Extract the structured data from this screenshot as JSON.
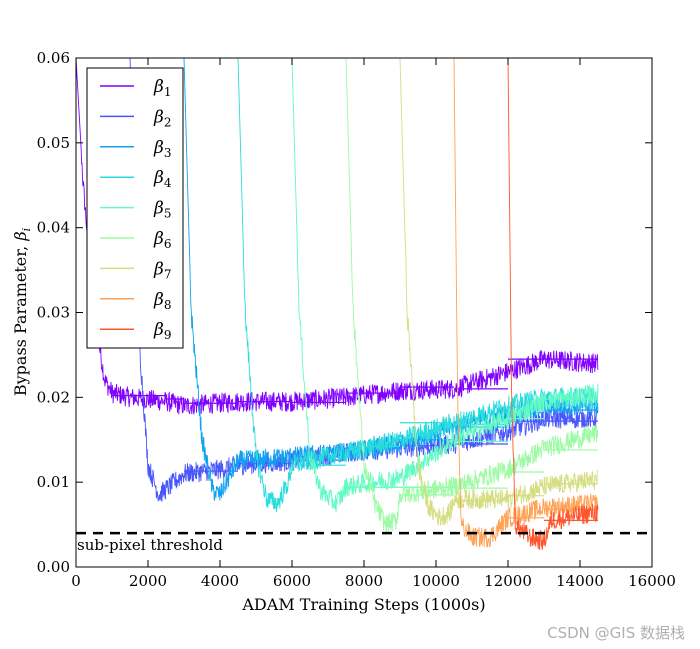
{
  "chart_data": {
    "type": "line",
    "title": "",
    "xlabel": "ADAM Training Steps (1000s)",
    "ylabel": "Bypass Parameter, βi",
    "xlim": [
      0,
      16000
    ],
    "ylim": [
      0,
      0.06
    ],
    "x_ticks": [
      0,
      2000,
      4000,
      6000,
      8000,
      10000,
      12000,
      14000,
      16000
    ],
    "x_tick_labels": [
      "0",
      "2000",
      "4000",
      "6000",
      "8000",
      "10000",
      "12000",
      "14000",
      "16000"
    ],
    "y_ticks": [
      0,
      0.01,
      0.02,
      0.03,
      0.04,
      0.05,
      0.06
    ],
    "y_tick_labels": [
      "0.00",
      "0.01",
      "0.02",
      "0.03",
      "0.04",
      "0.05",
      "0.06"
    ],
    "grid": false,
    "legend_position": "top-left",
    "threshold": {
      "value": 0.004,
      "label": "sub-pixel threshold",
      "style": "dashed",
      "color": "#000000"
    },
    "series": [
      {
        "name": "β1",
        "color": "#8000ff",
        "start": 0,
        "trained": [
          [
            0,
            0.06
          ],
          [
            200,
            0.045
          ],
          [
            500,
            0.03
          ],
          [
            800,
            0.022
          ],
          [
            1000,
            0.0205
          ],
          [
            1500,
            0.02
          ],
          [
            2500,
            0.0195
          ],
          [
            3000,
            0.019
          ],
          [
            4500,
            0.0195
          ],
          [
            6000,
            0.0195
          ],
          [
            7500,
            0.02
          ],
          [
            9000,
            0.0208
          ],
          [
            10500,
            0.021
          ],
          [
            12000,
            0.023
          ],
          [
            13000,
            0.0245
          ],
          [
            14500,
            0.024
          ]
        ],
        "sparse": [
          [
            1000,
            0.0202
          ],
          [
            2500,
            0.0198
          ],
          [
            3000,
            0.0193
          ],
          [
            4500,
            0.0195
          ],
          [
            6000,
            0.0194
          ],
          [
            7500,
            0.0205
          ],
          [
            9000,
            0.0212
          ],
          [
            10500,
            0.021
          ],
          [
            12000,
            0.0245
          ],
          [
            13000,
            0.0245
          ]
        ]
      },
      {
        "name": "β2",
        "color": "#4856fb",
        "start": 1500,
        "trained": [
          [
            1500,
            0.06
          ],
          [
            1700,
            0.03
          ],
          [
            2000,
            0.012
          ],
          [
            2300,
            0.0085
          ],
          [
            2600,
            0.0095
          ],
          [
            3000,
            0.011
          ],
          [
            4000,
            0.0115
          ],
          [
            4500,
            0.012
          ],
          [
            6000,
            0.0125
          ],
          [
            7500,
            0.0135
          ],
          [
            9000,
            0.014
          ],
          [
            10500,
            0.0145
          ],
          [
            12000,
            0.016
          ],
          [
            13000,
            0.0175
          ],
          [
            14500,
            0.0175
          ]
        ],
        "sparse": [
          [
            3000,
            0.0113
          ],
          [
            4500,
            0.0122
          ],
          [
            6000,
            0.0126
          ],
          [
            7500,
            0.014
          ],
          [
            9000,
            0.0143
          ],
          [
            10500,
            0.0145
          ],
          [
            12000,
            0.0172
          ],
          [
            13000,
            0.0172
          ]
        ]
      },
      {
        "name": "β3",
        "color": "#10a2f0",
        "start": 3000,
        "trained": [
          [
            3000,
            0.06
          ],
          [
            3200,
            0.03
          ],
          [
            3500,
            0.015
          ],
          [
            3800,
            0.009
          ],
          [
            4000,
            0.0085
          ],
          [
            4300,
            0.011
          ],
          [
            4500,
            0.0125
          ],
          [
            6000,
            0.013
          ],
          [
            7500,
            0.0135
          ],
          [
            9000,
            0.0145
          ],
          [
            10500,
            0.0165
          ],
          [
            12000,
            0.018
          ],
          [
            13000,
            0.019
          ],
          [
            14500,
            0.019
          ]
        ],
        "sparse": [
          [
            4500,
            0.0125
          ],
          [
            6000,
            0.013
          ],
          [
            7500,
            0.014
          ],
          [
            9000,
            0.015
          ],
          [
            10500,
            0.0165
          ],
          [
            12000,
            0.0182
          ],
          [
            13000,
            0.0185
          ]
        ]
      },
      {
        "name": "β4",
        "color": "#2adddd",
        "start": 4500,
        "trained": [
          [
            4500,
            0.06
          ],
          [
            4700,
            0.03
          ],
          [
            5000,
            0.013
          ],
          [
            5300,
            0.008
          ],
          [
            5600,
            0.0075
          ],
          [
            5900,
            0.01
          ],
          [
            6000,
            0.012
          ],
          [
            7500,
            0.0135
          ],
          [
            9000,
            0.015
          ],
          [
            10500,
            0.017
          ],
          [
            12000,
            0.019
          ],
          [
            13000,
            0.02
          ],
          [
            14500,
            0.02
          ]
        ],
        "sparse": [
          [
            6000,
            0.012
          ],
          [
            7500,
            0.0142
          ],
          [
            9000,
            0.017
          ],
          [
            10500,
            0.0168
          ],
          [
            12000,
            0.0188
          ],
          [
            13000,
            0.019
          ]
        ]
      },
      {
        "name": "β5",
        "color": "#62fbc4",
        "start": 6000,
        "trained": [
          [
            6000,
            0.06
          ],
          [
            6200,
            0.03
          ],
          [
            6500,
            0.013
          ],
          [
            6800,
            0.009
          ],
          [
            7200,
            0.0075
          ],
          [
            7400,
            0.0085
          ],
          [
            7500,
            0.0095
          ],
          [
            9000,
            0.0105
          ],
          [
            10500,
            0.015
          ],
          [
            12000,
            0.0175
          ],
          [
            13000,
            0.0195
          ],
          [
            14500,
            0.0205
          ]
        ],
        "sparse": [
          [
            7500,
            0.0094
          ],
          [
            9000,
            0.0094
          ],
          [
            10500,
            0.0148
          ],
          [
            12000,
            0.0175
          ],
          [
            13000,
            0.0198
          ]
        ]
      },
      {
        "name": "β6",
        "color": "#9cfba4",
        "start": 7500,
        "trained": [
          [
            7500,
            0.06
          ],
          [
            7700,
            0.03
          ],
          [
            8000,
            0.012
          ],
          [
            8300,
            0.0075
          ],
          [
            8600,
            0.005
          ],
          [
            8900,
            0.0055
          ],
          [
            9000,
            0.0085
          ],
          [
            10500,
            0.0095
          ],
          [
            12000,
            0.0115
          ],
          [
            13000,
            0.014
          ],
          [
            14500,
            0.0158
          ]
        ],
        "sparse": [
          [
            9000,
            0.0085
          ],
          [
            10500,
            0.0093
          ],
          [
            12000,
            0.0112
          ],
          [
            13000,
            0.0138
          ]
        ]
      },
      {
        "name": "β7",
        "color": "#d4dd80",
        "start": 9000,
        "trained": [
          [
            9000,
            0.06
          ],
          [
            9200,
            0.03
          ],
          [
            9500,
            0.012
          ],
          [
            9800,
            0.007
          ],
          [
            10100,
            0.0058
          ],
          [
            10400,
            0.0065
          ],
          [
            10500,
            0.008
          ],
          [
            12000,
            0.008
          ],
          [
            13000,
            0.0095
          ],
          [
            14500,
            0.0103
          ]
        ],
        "sparse": [
          [
            10500,
            0.0078
          ],
          [
            12000,
            0.0084
          ],
          [
            13000,
            0.0098
          ]
        ]
      },
      {
        "name": "β8",
        "color": "#ffa256",
        "start": 10500,
        "trained": [
          [
            10500,
            0.06
          ],
          [
            10600,
            0.02
          ],
          [
            10700,
            0.005
          ],
          [
            11000,
            0.0035
          ],
          [
            11500,
            0.0035
          ],
          [
            12000,
            0.0058
          ],
          [
            13000,
            0.007
          ],
          [
            14500,
            0.0075
          ]
        ],
        "sparse": [
          [
            12000,
            0.0058
          ],
          [
            13000,
            0.0068
          ]
        ]
      },
      {
        "name": "β9",
        "color": "#ff562c",
        "start": 12000,
        "trained": [
          [
            12000,
            0.06
          ],
          [
            12100,
            0.02
          ],
          [
            12200,
            0.005
          ],
          [
            12600,
            0.0035
          ],
          [
            13000,
            0.003
          ],
          [
            13200,
            0.0055
          ],
          [
            14500,
            0.0065
          ]
        ],
        "sparse": [
          [
            13000,
            0.0055
          ]
        ]
      }
    ],
    "legend": [
      {
        "symbol": "β",
        "sub": "1"
      },
      {
        "symbol": "β",
        "sub": "2"
      },
      {
        "symbol": "β",
        "sub": "3"
      },
      {
        "symbol": "β",
        "sub": "4"
      },
      {
        "symbol": "β",
        "sub": "5"
      },
      {
        "symbol": "β",
        "sub": "6"
      },
      {
        "symbol": "β",
        "sub": "7"
      },
      {
        "symbol": "β",
        "sub": "8"
      },
      {
        "symbol": "β",
        "sub": "9"
      }
    ]
  },
  "axis": {
    "xlabel": "ADAM Training Steps (1000s)",
    "ylabel_main": "Bypass Parameter, ",
    "ylabel_symbol": "β",
    "ylabel_sub": "i"
  },
  "watermark": "CSDN @GIS 数据栈"
}
